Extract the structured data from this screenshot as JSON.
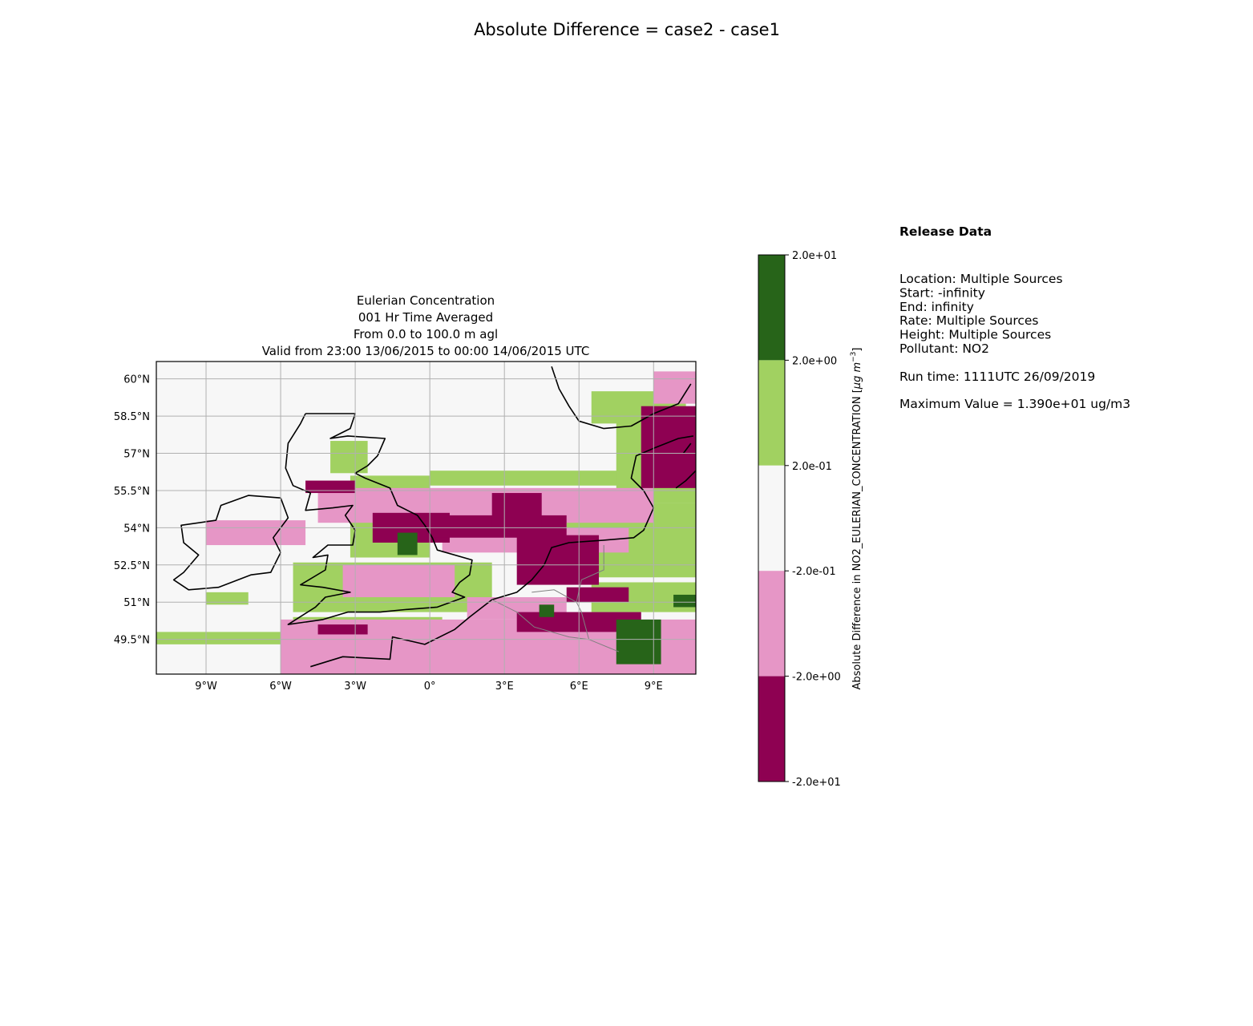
{
  "suptitle": "Absolute Difference = case2 - case1",
  "map": {
    "title_lines": [
      "Eulerian Concentration",
      "001 Hr Time Averaged",
      "From 0.0 to 100.0 m agl",
      "Valid from 23:00 13/06/2015 to 00:00 14/06/2015 UTC"
    ],
    "lon_range": [
      -11,
      10.7
    ],
    "lat_range": [
      48.1,
      60.7
    ],
    "lon_ticks": [
      -9,
      -6,
      -3,
      0,
      3,
      6,
      9
    ],
    "lon_tick_labels": [
      "9°W",
      "6°W",
      "3°W",
      "0°",
      "3°E",
      "6°E",
      "9°E"
    ],
    "lat_ticks": [
      60,
      58.5,
      57,
      55.5,
      54,
      52.5,
      51,
      49.5
    ],
    "lat_tick_labels": [
      "60°N",
      "58.5°N",
      "57°N",
      "55.5°N",
      "54°N",
      "52.5°N",
      "51°N",
      "49.5°N"
    ],
    "grid": true,
    "ocean_color": "#f7f7f7",
    "coast_color": "#000000",
    "border_color": "#808080",
    "gridline_color": "#b0b0b0"
  },
  "colorbar": {
    "tick_labels": [
      "2.0e+01",
      "2.0e+00",
      "2.0e-01",
      "-2.0e-01",
      "-2.0e+00",
      "-2.0e+01"
    ],
    "colors_top_to_bottom": [
      "#276419",
      "#a1d161",
      "#f7f7f7",
      "#e696c6",
      "#8e0152"
    ],
    "label_prefix": "Absolute Difference in NO2_EULERIAN_CONCENTRATION [",
    "label_unit": "μg m",
    "label_exp": "−3",
    "label_suffix": "]"
  },
  "release": {
    "heading": "Release Data",
    "lines": [
      "Location: Multiple Sources",
      "Start: -infinity",
      "End: infinity",
      "Rate: Multiple Sources",
      "Height: Multiple Sources",
      "Pollutant: NO2"
    ],
    "run_time": "Run time: 1111UTC 26/09/2019",
    "max_value": "Maximum Value = 1.390e+01 ug/m3"
  },
  "chart_data": {
    "type": "heatmap",
    "title": "Absolute Difference = case2 - case1",
    "subtitle": "Eulerian Concentration | 001 Hr Time Averaged | From 0.0 to 100.0 m agl | Valid from 23:00 13/06/2015 to 00:00 14/06/2015 UTC",
    "variable": "Absolute Difference in NO2_EULERIAN_CONCENTRATION",
    "unit": "μg m−3",
    "bins": [
      {
        "range": [
          2.0,
          20.0
        ],
        "color": "#276419"
      },
      {
        "range": [
          0.2,
          2.0
        ],
        "color": "#a1d161"
      },
      {
        "range": [
          -0.2,
          0.2
        ],
        "color": "#f7f7f7"
      },
      {
        "range": [
          -2.0,
          -0.2
        ],
        "color": "#e696c6"
      },
      {
        "range": [
          -20.0,
          -2.0
        ],
        "color": "#8e0152"
      }
    ],
    "xlim": [
      -11,
      10.7
    ],
    "ylim": [
      48.1,
      60.7
    ],
    "regions": [
      {
        "bin": 1,
        "lon": [
          -11.0,
          -4.0
        ],
        "lat": [
          49.3,
          49.8
        ]
      },
      {
        "bin": 1,
        "lon": [
          -5.5,
          0.5
        ],
        "lat": [
          49.6,
          50.4
        ]
      },
      {
        "bin": 1,
        "lon": [
          -5.5,
          2.5
        ],
        "lat": [
          50.6,
          52.6
        ]
      },
      {
        "bin": 1,
        "lon": [
          -3.2,
          0.0
        ],
        "lat": [
          52.8,
          56.1
        ]
      },
      {
        "bin": 1,
        "lon": [
          -4.0,
          -2.5
        ],
        "lat": [
          56.2,
          57.5
        ]
      },
      {
        "bin": 1,
        "lon": [
          0.0,
          8.0
        ],
        "lat": [
          55.7,
          56.3
        ]
      },
      {
        "bin": 1,
        "lon": [
          5.5,
          10.7
        ],
        "lat": [
          52.0,
          55.0
        ]
      },
      {
        "bin": 1,
        "lon": [
          7.5,
          10.7
        ],
        "lat": [
          55.0,
          58.5
        ]
      },
      {
        "bin": 1,
        "lon": [
          6.5,
          10.3
        ],
        "lat": [
          58.2,
          59.5
        ]
      },
      {
        "bin": 1,
        "lon": [
          6.5,
          10.7
        ],
        "lat": [
          50.6,
          51.8
        ]
      },
      {
        "bin": 1,
        "lon": [
          -9.0,
          -7.3
        ],
        "lat": [
          50.9,
          51.4
        ]
      },
      {
        "bin": 3,
        "lon": [
          -9.0,
          -5.0
        ],
        "lat": [
          53.3,
          54.3
        ]
      },
      {
        "bin": 3,
        "lon": [
          -4.5,
          9.0
        ],
        "lat": [
          54.2,
          55.6
        ]
      },
      {
        "bin": 3,
        "lon": [
          0.5,
          8.0
        ],
        "lat": [
          53.0,
          54.0
        ]
      },
      {
        "bin": 3,
        "lon": [
          -6.0,
          10.7
        ],
        "lat": [
          48.1,
          50.3
        ]
      },
      {
        "bin": 3,
        "lon": [
          1.5,
          5.5
        ],
        "lat": [
          50.3,
          51.2
        ]
      },
      {
        "bin": 3,
        "lon": [
          -3.5,
          1.0
        ],
        "lat": [
          51.2,
          52.5
        ]
      },
      {
        "bin": 3,
        "lon": [
          9.0,
          10.7
        ],
        "lat": [
          59.0,
          60.3
        ]
      },
      {
        "bin": 4,
        "lon": [
          -5.0,
          -3.0
        ],
        "lat": [
          55.4,
          55.9
        ]
      },
      {
        "bin": 4,
        "lon": [
          -2.3,
          0.8
        ],
        "lat": [
          53.4,
          54.6
        ]
      },
      {
        "bin": 4,
        "lon": [
          0.0,
          5.5
        ],
        "lat": [
          53.6,
          54.5
        ]
      },
      {
        "bin": 4,
        "lon": [
          3.5,
          6.8
        ],
        "lat": [
          51.7,
          53.7
        ]
      },
      {
        "bin": 4,
        "lon": [
          2.5,
          4.5
        ],
        "lat": [
          54.0,
          55.4
        ]
      },
      {
        "bin": 4,
        "lon": [
          5.5,
          8.0
        ],
        "lat": [
          51.0,
          51.6
        ]
      },
      {
        "bin": 4,
        "lon": [
          8.5,
          10.7
        ],
        "lat": [
          55.6,
          58.9
        ]
      },
      {
        "bin": 4,
        "lon": [
          3.5,
          8.5
        ],
        "lat": [
          49.8,
          50.6
        ]
      },
      {
        "bin": 4,
        "lon": [
          -4.5,
          -2.5
        ],
        "lat": [
          49.7,
          50.1
        ]
      },
      {
        "bin": 0,
        "lon": [
          -1.3,
          -0.5
        ],
        "lat": [
          52.9,
          53.8
        ]
      },
      {
        "bin": 0,
        "lon": [
          7.5,
          9.3
        ],
        "lat": [
          48.5,
          50.3
        ]
      },
      {
        "bin": 0,
        "lon": [
          4.4,
          5.0
        ],
        "lat": [
          50.4,
          50.9
        ]
      },
      {
        "bin": 0,
        "lon": [
          9.8,
          10.7
        ],
        "lat": [
          50.8,
          51.3
        ]
      }
    ]
  }
}
